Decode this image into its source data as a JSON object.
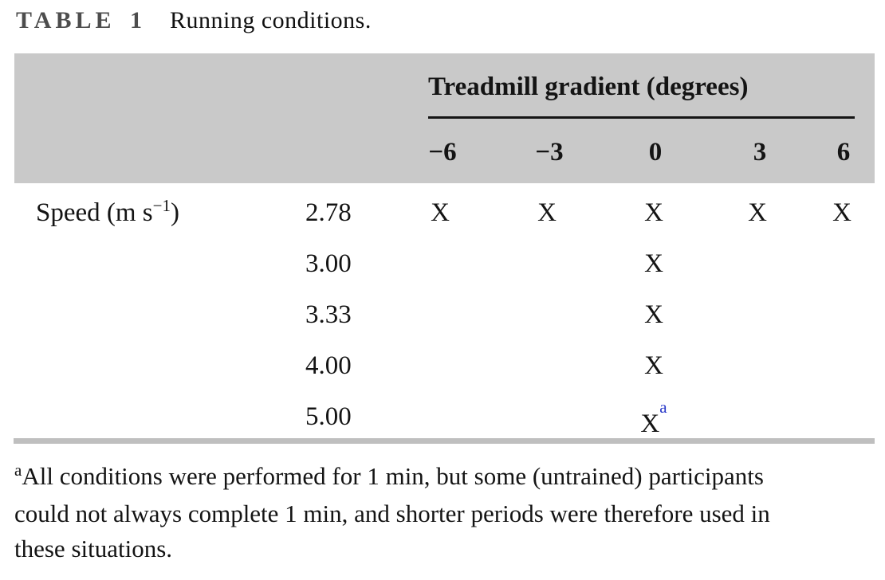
{
  "figure": {
    "label": "TABLE 1",
    "title": "Running conditions."
  },
  "table": {
    "group_header": "Treadmill gradient (degrees)",
    "gradient_columns": [
      "−6",
      "−3",
      "0",
      "3",
      "6"
    ],
    "row_header": {
      "pre": "Speed (m s",
      "sup": "−1",
      "post": ")"
    },
    "rows": [
      {
        "speed": "2.78",
        "marks": [
          "X",
          "X",
          "X",
          "X",
          "X"
        ]
      },
      {
        "speed": "3.00",
        "marks": [
          "",
          "",
          "X",
          "",
          ""
        ]
      },
      {
        "speed": "3.33",
        "marks": [
          "",
          "",
          "X",
          "",
          ""
        ]
      },
      {
        "speed": "4.00",
        "marks": [
          "",
          "",
          "X",
          "",
          ""
        ]
      },
      {
        "speed": "5.00",
        "marks": [
          "",
          "",
          "X",
          "",
          ""
        ],
        "mark_sup": "a"
      }
    ]
  },
  "footnote": {
    "marker": "a",
    "lines": [
      "All conditions were performed for 1 min, but some (untrained) participants",
      "could not always complete 1 min, and shorter periods were therefore used in",
      "these situations."
    ]
  },
  "colors": {
    "header_band": "#c9c9c9",
    "footnote_marker_blue": "#2838c8",
    "table_label_gray": "#4d4d4d",
    "bottom_rule_gray": "#bfbfbf"
  }
}
